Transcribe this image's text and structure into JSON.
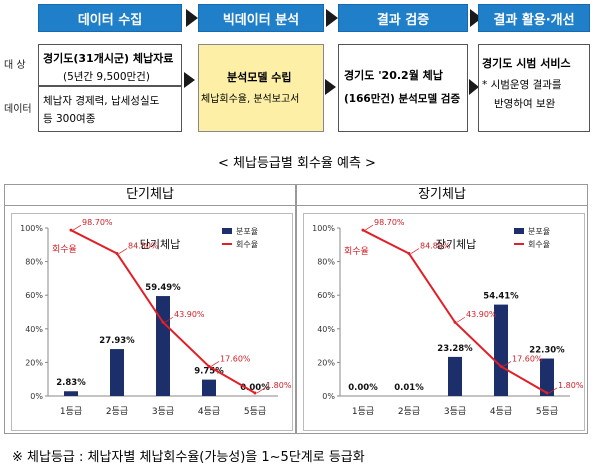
{
  "stages": [
    {
      "label": "데이터 수집"
    },
    {
      "label": "빅데이터 분석"
    },
    {
      "label": "결과 검증"
    },
    {
      "label": "결과 활용·개선"
    }
  ],
  "side_labels": {
    "target": "대 상",
    "data": "데이터"
  },
  "collect": {
    "target_title": "경기도(31개시군) 체납자료",
    "target_sub": "(5년간 9,500만건)",
    "data_line1": "체납자 경제력, 납세성실도",
    "data_line2": "등 300여종"
  },
  "analysis": {
    "title": "분석모델 수립",
    "sub": "체납회수율, 분석보고서"
  },
  "verify": {
    "line1": "경기도 '20.2월 체납",
    "line2": "(166만건) 분석모델 검증"
  },
  "apply": {
    "title": "경기도 시범 서비스",
    "line1": "* 시범운영 결과를",
    "line2": "반영하여 보완"
  },
  "section_title": "< 체납등급별 회수율 예측 >",
  "footnote": "※ 체납등급 : 체납자별 체납회수율(가능성)을 1~5단계로 등급화",
  "colors": {
    "stage_blue": "#1f7fc8",
    "analysis_fill": "#fdf0a6",
    "bar": "#1c2f6b",
    "line": "#e01f26",
    "series_label": "#d01f26"
  },
  "chart_data": [
    {
      "type": "bar",
      "panel_title": "단기체납",
      "inner_title": "단기체납",
      "categories": [
        "1등급",
        "2등급",
        "3등급",
        "4등급",
        "5등급"
      ],
      "y_ticks": [
        "0%",
        "20%",
        "40%",
        "60%",
        "80%",
        "100%"
      ],
      "ylim": [
        0,
        100
      ],
      "series": [
        {
          "name": "분포율",
          "type": "bar",
          "values": [
            2.83,
            27.93,
            59.49,
            9.75,
            0.0
          ],
          "labels": [
            "2.83%",
            "27.93%",
            "59.49%",
            "9.75%",
            "0.00%"
          ]
        },
        {
          "name": "회수율",
          "type": "line",
          "values": [
            98.7,
            84.8,
            43.9,
            17.6,
            1.8
          ],
          "labels": [
            "98.70%",
            "84.80%",
            "43.90%",
            "17.60%",
            "1.80%"
          ]
        }
      ],
      "line_series_label": "회수율",
      "legend": "top-right"
    },
    {
      "type": "bar",
      "panel_title": "장기체납",
      "inner_title": "장기체납",
      "categories": [
        "1등급",
        "2등급",
        "3등급",
        "4등급",
        "5등급"
      ],
      "y_ticks": [
        "0%",
        "20%",
        "40%",
        "60%",
        "80%",
        "100%"
      ],
      "ylim": [
        0,
        100
      ],
      "series": [
        {
          "name": "분포율",
          "type": "bar",
          "values": [
            0.0,
            0.01,
            23.28,
            54.41,
            22.3
          ],
          "labels": [
            "0.00%",
            "0.01%",
            "23.28%",
            "54.41%",
            "22.30%"
          ]
        },
        {
          "name": "회수율",
          "type": "line",
          "values": [
            98.7,
            84.8,
            43.9,
            17.6,
            1.8
          ],
          "labels": [
            "98.70%",
            "84.80%",
            "43.90%",
            "17.60%",
            "1.80%"
          ]
        }
      ],
      "line_series_label": "회수율",
      "legend": "top-right"
    }
  ]
}
